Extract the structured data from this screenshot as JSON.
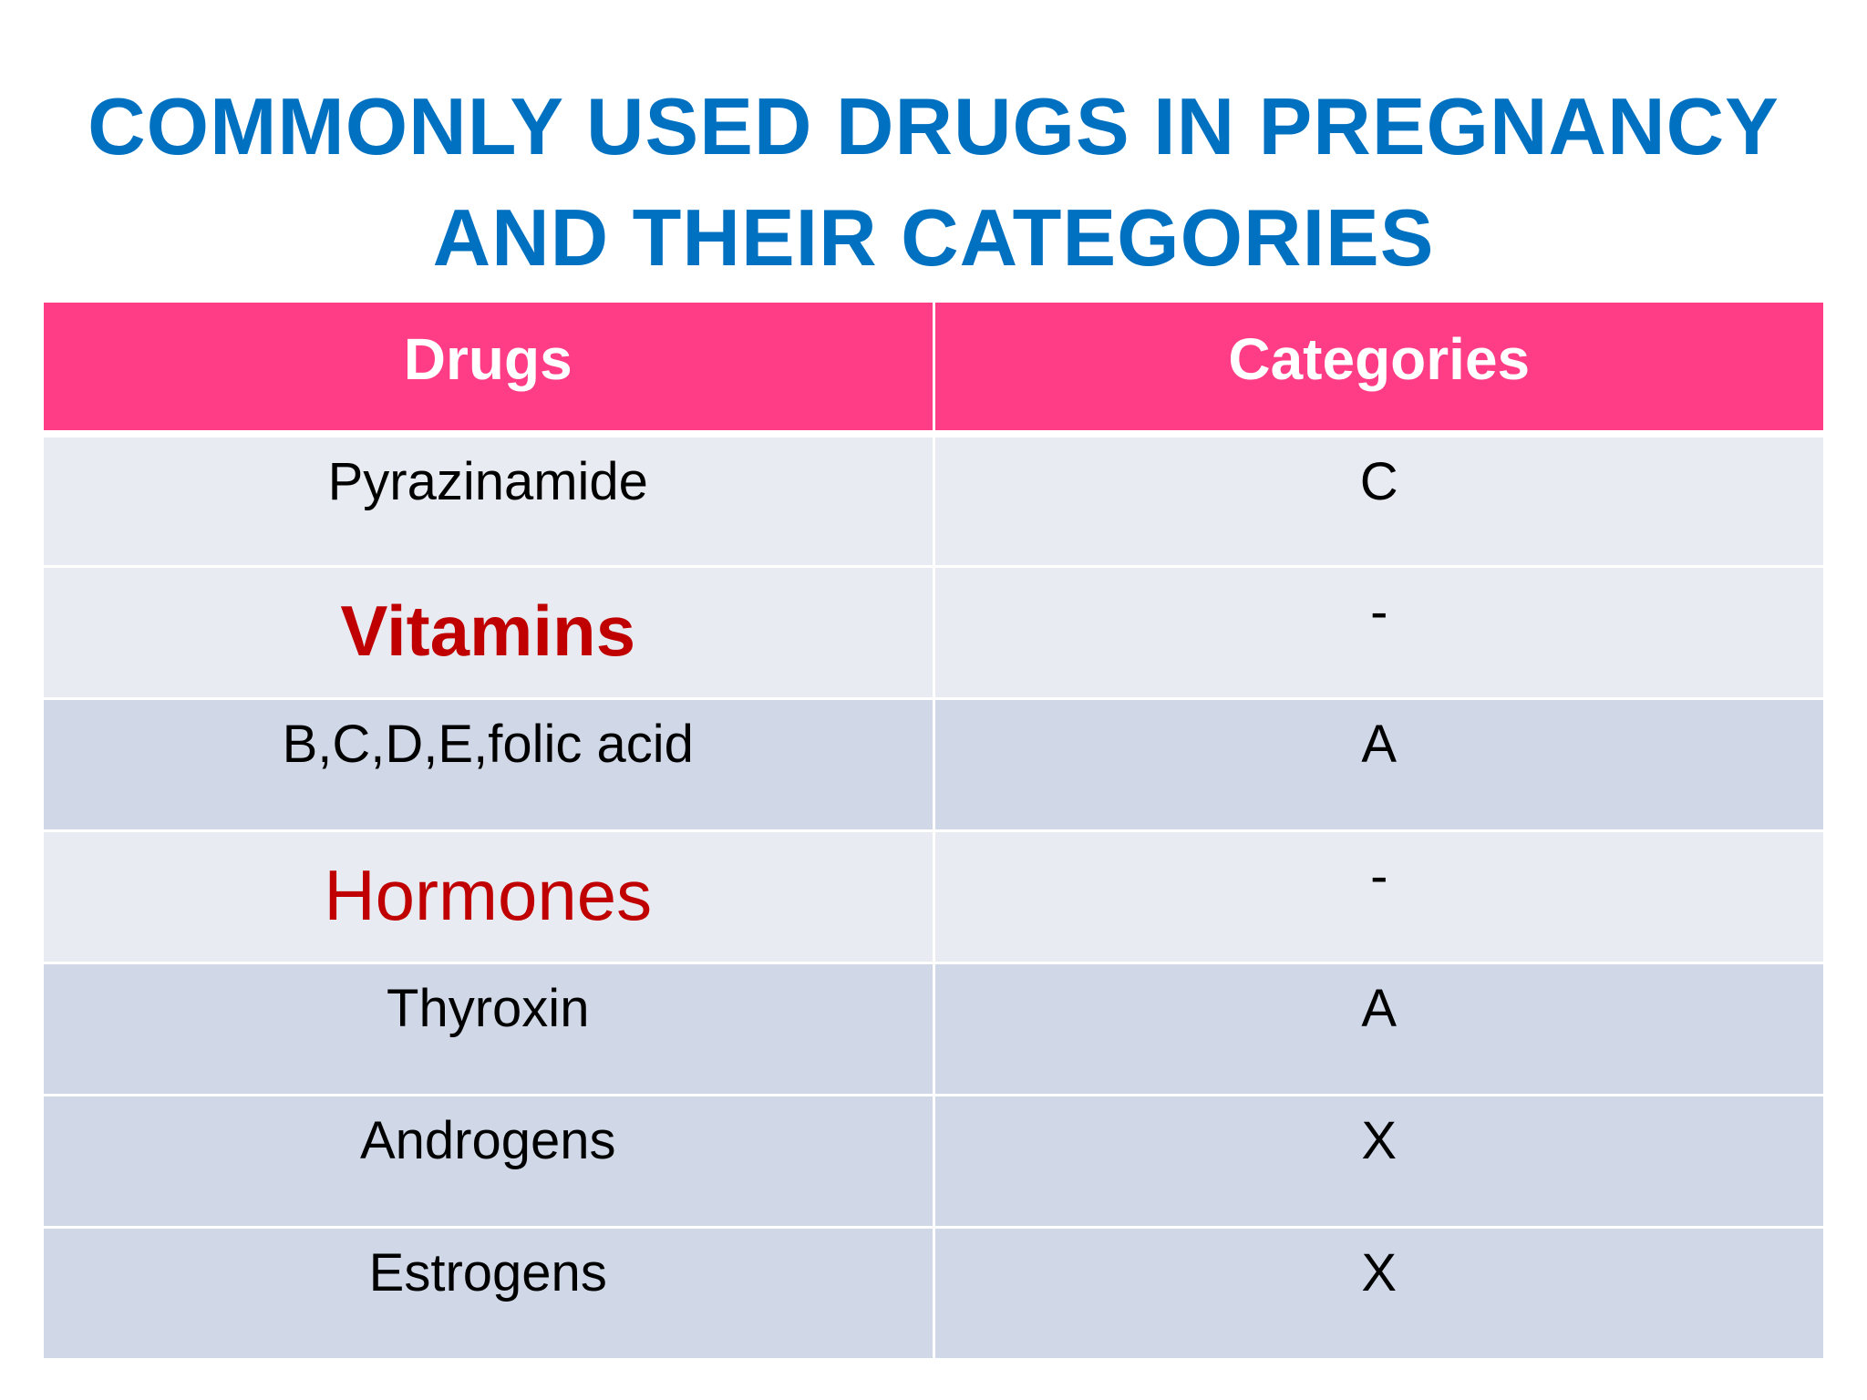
{
  "slide": {
    "title_line1": "COMMONLY USED DRUGS IN PREGNANCY",
    "title_line2": "AND THEIR CATEGORIES"
  },
  "table": {
    "headers": [
      "Drugs",
      "Categories"
    ],
    "rows": [
      {
        "drug": "Pyrazinamide",
        "category": "C"
      },
      {
        "drug": "Vitamins",
        "category": "-"
      },
      {
        "drug": "B,C,D,E,folic acid",
        "category": "A"
      },
      {
        "drug": "Hormones",
        "category": "-"
      },
      {
        "drug": "Thyroxin",
        "category": "A"
      },
      {
        "drug": "Androgens",
        "category": "X"
      },
      {
        "drug": "Estrogens",
        "category": "X"
      }
    ]
  },
  "colors": {
    "title": "#0070c0",
    "header_bg": "#ff3d86",
    "group_label": "#c00000",
    "row_light": "#e8ebf1",
    "row_dark": "#d0d8e8"
  }
}
